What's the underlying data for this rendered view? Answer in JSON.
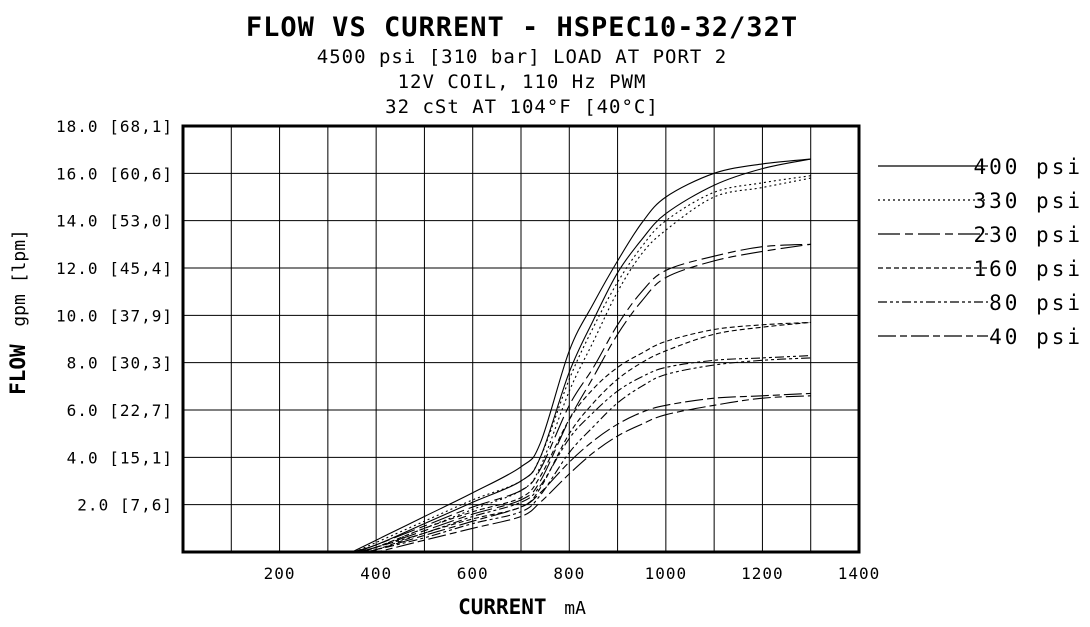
{
  "chart_data": {
    "type": "line",
    "title": "FLOW VS CURRENT - HSPEC10-32/32T",
    "subtitles": [
      "4500 psi [310 bar] LOAD AT PORT 2",
      "12V COIL, 110 Hz PWM",
      "32 cSt AT 104°F [40°C]"
    ],
    "xlabel": "CURRENT",
    "xlabel_unit": "mA",
    "ylabel": "FLOW",
    "ylabel_unit": "gpm [lpm]",
    "xlim": [
      0,
      1400
    ],
    "ylim": [
      0,
      18
    ],
    "x_ticks": [
      {
        "value": 200,
        "label": "200"
      },
      {
        "value": 400,
        "label": "400"
      },
      {
        "value": 600,
        "label": "600"
      },
      {
        "value": 800,
        "label": "800"
      },
      {
        "value": 1000,
        "label": "1000"
      },
      {
        "value": 1200,
        "label": "1200"
      },
      {
        "value": 1400,
        "label": "1400"
      }
    ],
    "y_ticks": [
      {
        "value": 2,
        "label": "2.0 [7,6]"
      },
      {
        "value": 4,
        "label": "4.0 [15,1]"
      },
      {
        "value": 6,
        "label": "6.0 [22,7]"
      },
      {
        "value": 8,
        "label": "8.0 [30,3]"
      },
      {
        "value": 10,
        "label": "10.0 [37,9]"
      },
      {
        "value": 12,
        "label": "12.0 [45,4]"
      },
      {
        "value": 14,
        "label": "14.0 [53,0]"
      },
      {
        "value": 16,
        "label": "16.0 [60,6]"
      },
      {
        "value": 18,
        "label": "18.0 [68,1]"
      }
    ],
    "grid": true,
    "legend_position": "right",
    "series": [
      {
        "name": "400 psi",
        "dash": "solid",
        "upper": [
          [
            350,
            0
          ],
          [
            400,
            0.5
          ],
          [
            500,
            1.5
          ],
          [
            600,
            2.5
          ],
          [
            700,
            3.6
          ],
          [
            740,
            4.6
          ],
          [
            800,
            8.5
          ],
          [
            850,
            10.5
          ],
          [
            900,
            12.3
          ],
          [
            950,
            13.9
          ],
          [
            1000,
            15
          ],
          [
            1100,
            16
          ],
          [
            1200,
            16.4
          ],
          [
            1300,
            16.6
          ]
        ],
        "lower": [
          [
            350,
            0
          ],
          [
            400,
            0.3
          ],
          [
            500,
            1.2
          ],
          [
            600,
            2.1
          ],
          [
            700,
            3.0
          ],
          [
            740,
            4.0
          ],
          [
            800,
            7.6
          ],
          [
            850,
            9.8
          ],
          [
            900,
            11.8
          ],
          [
            950,
            13.2
          ],
          [
            1000,
            14.3
          ],
          [
            1100,
            15.5
          ],
          [
            1200,
            16.2
          ],
          [
            1300,
            16.6
          ]
        ]
      },
      {
        "name": "330 psi",
        "dash": "dotted",
        "upper": [
          [
            355,
            0
          ],
          [
            400,
            0.4
          ],
          [
            500,
            1.3
          ],
          [
            600,
            2.2
          ],
          [
            700,
            3.0
          ],
          [
            740,
            4.0
          ],
          [
            800,
            7.3
          ],
          [
            850,
            9.5
          ],
          [
            900,
            11.4
          ],
          [
            950,
            12.9
          ],
          [
            1000,
            14
          ],
          [
            1100,
            15.2
          ],
          [
            1200,
            15.6
          ],
          [
            1300,
            15.9
          ]
        ],
        "lower": [
          [
            355,
            0
          ],
          [
            400,
            0.2
          ],
          [
            500,
            1.0
          ],
          [
            600,
            1.8
          ],
          [
            700,
            2.6
          ],
          [
            740,
            3.6
          ],
          [
            800,
            6.8
          ],
          [
            850,
            8.9
          ],
          [
            900,
            11.0
          ],
          [
            950,
            12.6
          ],
          [
            1000,
            13.6
          ],
          [
            1100,
            15.0
          ],
          [
            1200,
            15.4
          ],
          [
            1300,
            15.8
          ]
        ]
      },
      {
        "name": "230 psi",
        "dash": "long-dash",
        "upper": [
          [
            360,
            0
          ],
          [
            400,
            0.3
          ],
          [
            500,
            1.1
          ],
          [
            600,
            1.9
          ],
          [
            700,
            2.6
          ],
          [
            740,
            3.5
          ],
          [
            800,
            6.2
          ],
          [
            850,
            7.8
          ],
          [
            900,
            9.6
          ],
          [
            950,
            11.0
          ],
          [
            1000,
            11.9
          ],
          [
            1100,
            12.5
          ],
          [
            1200,
            12.9
          ],
          [
            1300,
            13.0
          ]
        ],
        "lower": [
          [
            360,
            0
          ],
          [
            400,
            0.2
          ],
          [
            500,
            0.9
          ],
          [
            600,
            1.6
          ],
          [
            700,
            2.2
          ],
          [
            740,
            3.0
          ],
          [
            800,
            5.6
          ],
          [
            850,
            7.4
          ],
          [
            900,
            9.2
          ],
          [
            950,
            10.6
          ],
          [
            1000,
            11.6
          ],
          [
            1100,
            12.3
          ],
          [
            1200,
            12.7
          ],
          [
            1300,
            13.0
          ]
        ]
      },
      {
        "name": "160 psi",
        "dash": "dashed",
        "upper": [
          [
            365,
            0
          ],
          [
            400,
            0.2
          ],
          [
            500,
            1.0
          ],
          [
            600,
            1.7
          ],
          [
            700,
            2.3
          ],
          [
            740,
            3.2
          ],
          [
            800,
            5.6
          ],
          [
            850,
            6.9
          ],
          [
            900,
            7.8
          ],
          [
            950,
            8.4
          ],
          [
            1000,
            8.9
          ],
          [
            1100,
            9.4
          ],
          [
            1200,
            9.6
          ],
          [
            1300,
            9.7
          ]
        ],
        "lower": [
          [
            365,
            0
          ],
          [
            400,
            0.1
          ],
          [
            500,
            0.8
          ],
          [
            600,
            1.4
          ],
          [
            700,
            1.9
          ],
          [
            740,
            2.7
          ],
          [
            800,
            5.0
          ],
          [
            850,
            6.3
          ],
          [
            900,
            7.3
          ],
          [
            950,
            8.0
          ],
          [
            1000,
            8.5
          ],
          [
            1100,
            9.2
          ],
          [
            1200,
            9.5
          ],
          [
            1300,
            9.7
          ]
        ]
      },
      {
        "name": "80 psi",
        "dash": "dash-dot-dot",
        "upper": [
          [
            370,
            0
          ],
          [
            400,
            0.2
          ],
          [
            500,
            0.8
          ],
          [
            600,
            1.5
          ],
          [
            700,
            2.1
          ],
          [
            740,
            2.8
          ],
          [
            800,
            4.8
          ],
          [
            850,
            5.9
          ],
          [
            900,
            6.8
          ],
          [
            950,
            7.4
          ],
          [
            1000,
            7.8
          ],
          [
            1100,
            8.1
          ],
          [
            1200,
            8.2
          ],
          [
            1300,
            8.3
          ]
        ],
        "lower": [
          [
            370,
            0
          ],
          [
            400,
            0.1
          ],
          [
            500,
            0.6
          ],
          [
            600,
            1.2
          ],
          [
            700,
            1.7
          ],
          [
            740,
            2.4
          ],
          [
            800,
            4.2
          ],
          [
            850,
            5.3
          ],
          [
            900,
            6.3
          ],
          [
            950,
            7.0
          ],
          [
            1000,
            7.5
          ],
          [
            1100,
            7.9
          ],
          [
            1200,
            8.1
          ],
          [
            1300,
            8.2
          ]
        ]
      },
      {
        "name": "40 psi",
        "dash": "long-short",
        "upper": [
          [
            375,
            0
          ],
          [
            400,
            0.1
          ],
          [
            500,
            0.7
          ],
          [
            600,
            1.3
          ],
          [
            700,
            1.9
          ],
          [
            740,
            2.5
          ],
          [
            800,
            3.8
          ],
          [
            850,
            4.7
          ],
          [
            900,
            5.4
          ],
          [
            950,
            5.9
          ],
          [
            1000,
            6.2
          ],
          [
            1100,
            6.5
          ],
          [
            1200,
            6.6
          ],
          [
            1300,
            6.7
          ]
        ],
        "lower": [
          [
            375,
            0
          ],
          [
            400,
            0.0
          ],
          [
            500,
            0.5
          ],
          [
            600,
            1.0
          ],
          [
            700,
            1.5
          ],
          [
            740,
            2.1
          ],
          [
            800,
            3.3
          ],
          [
            850,
            4.2
          ],
          [
            900,
            4.9
          ],
          [
            950,
            5.4
          ],
          [
            1000,
            5.8
          ],
          [
            1100,
            6.2
          ],
          [
            1200,
            6.5
          ],
          [
            1300,
            6.6
          ]
        ]
      }
    ]
  }
}
